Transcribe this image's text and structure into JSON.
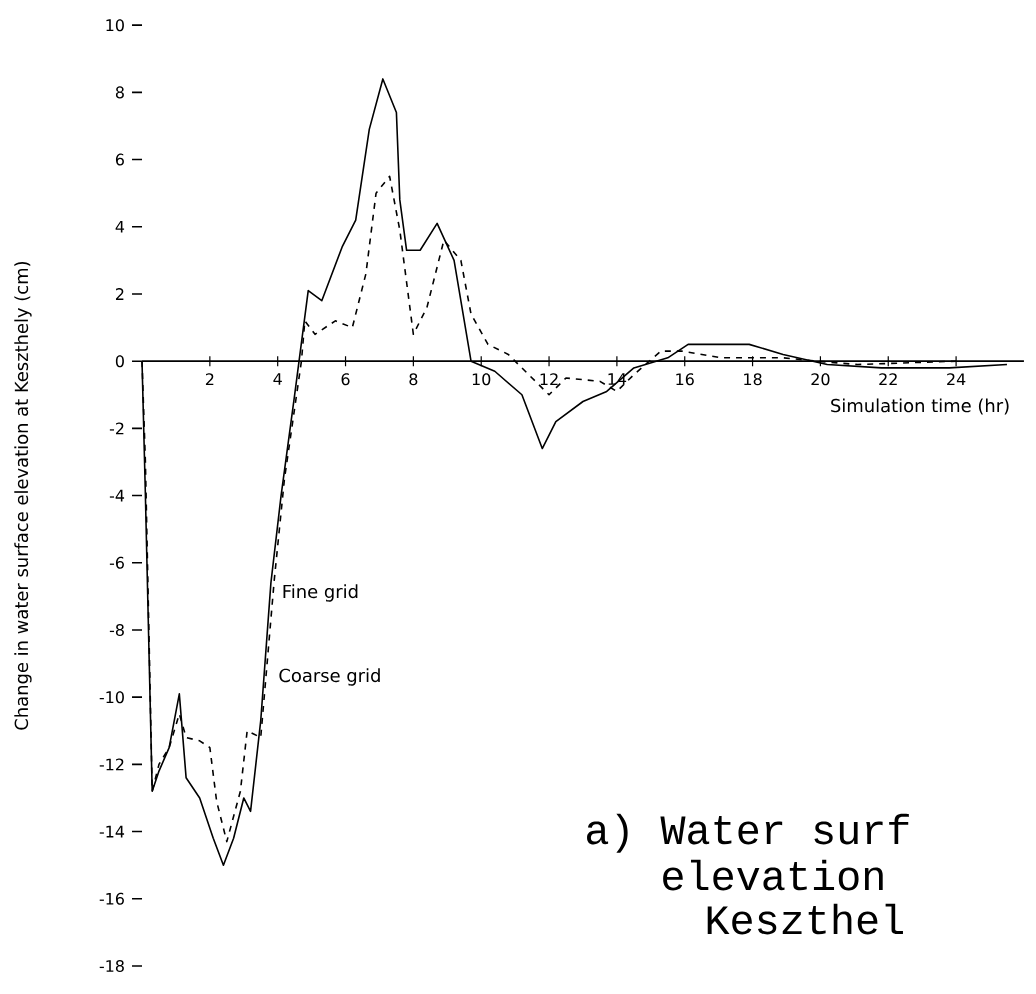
{
  "chart_data": {
    "type": "line",
    "xlabel": "Simulation time (hr)",
    "ylabel": "Change in water surface elevation at Keszthely (cm)",
    "annotations": [
      "a)",
      "Water surf",
      "elevation",
      "Keszthel"
    ],
    "series": [
      {
        "name": "Fine grid",
        "color": "#000000",
        "line_style": "solid",
        "x": [
          0,
          0.1,
          0.3,
          0.5,
          0.8,
          1.1,
          1.3,
          1.7,
          2.1,
          2.4,
          2.7,
          3.0,
          3.2,
          3.5,
          3.8,
          4.1,
          4.5,
          4.9,
          5.3,
          5.9,
          6.3,
          6.7,
          7.1,
          7.5,
          7.6,
          7.8,
          8.2,
          8.7,
          9.2,
          9.7,
          10.4,
          11.2,
          11.8,
          12.2,
          13.0,
          13.7,
          14.5,
          15.5,
          16.1,
          17.9,
          18.9,
          20.2,
          21.8,
          23.8,
          25.5
        ],
        "values": [
          0,
          -4,
          -12.8,
          -12.2,
          -11.5,
          -9.9,
          -12.4,
          -13,
          -14.2,
          -15,
          -14.2,
          -13,
          -13.4,
          -10.7,
          -6.6,
          -4,
          -1,
          2.1,
          1.8,
          3.4,
          4.2,
          6.9,
          8.4,
          7.4,
          4.8,
          3.3,
          3.3,
          4.1,
          3.0,
          0,
          -0.3,
          -1.0,
          -2.6,
          -1.8,
          -1.2,
          -0.9,
          -0.2,
          0.1,
          0.5,
          0.5,
          0.2,
          -0.1,
          -0.2,
          -0.2,
          -0.1
        ]
      },
      {
        "name": "Coarse grid",
        "color": "#000000",
        "line_style": "dashed",
        "x": [
          0,
          0.1,
          0.3,
          0.5,
          0.8,
          1.1,
          1.3,
          1.7,
          2.0,
          2.2,
          2.5,
          2.9,
          3.1,
          3.5,
          3.9,
          4.2,
          4.7,
          4.8,
          5.1,
          5.7,
          6.2,
          6.6,
          6.9,
          7.3,
          7.6,
          8.0,
          8.4,
          8.9,
          9.4,
          9.7,
          10.2,
          10.8,
          12.0,
          12.5,
          13.5,
          14.0,
          14.5,
          15.3,
          15.9,
          17.1,
          18.9,
          19.9,
          21.1,
          24.0
        ],
        "values": [
          0,
          -3,
          -12.8,
          -12,
          -11.5,
          -10.5,
          -11.2,
          -11.3,
          -11.5,
          -13.1,
          -14.3,
          -12.8,
          -11,
          -11.2,
          -6.5,
          -3.5,
          0,
          1.2,
          0.8,
          1.2,
          1.0,
          2.6,
          5.0,
          5.5,
          3.9,
          0.8,
          1.6,
          3.6,
          3.0,
          1.4,
          0.5,
          0.2,
          -1.0,
          -0.5,
          -0.6,
          -0.9,
          -0.4,
          0.3,
          0.3,
          0.1,
          0.1,
          0,
          -0.1,
          0
        ]
      }
    ],
    "xlim": [
      0,
      26
    ],
    "ylim": [
      -18,
      10
    ],
    "xticks": [
      2,
      4,
      6,
      8,
      10,
      12,
      14,
      16,
      18,
      20,
      22,
      24
    ],
    "yticks": [
      -18,
      -16,
      -14,
      -12,
      -10,
      -8,
      -6,
      -4,
      -2,
      0,
      2,
      4,
      6,
      8,
      10
    ],
    "grid": false,
    "legend": false
  }
}
